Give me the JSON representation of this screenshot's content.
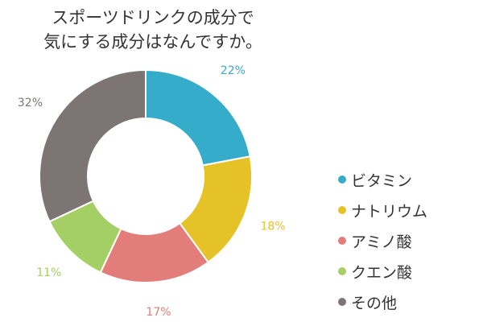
{
  "chart_data": {
    "type": "pie",
    "donut": true,
    "title_lines": [
      "スポーツドリンクの成分で",
      "気にする成分はなんですか。"
    ],
    "categories": [
      "ビタミン",
      "ナトリウム",
      "アミノ酸",
      "クエン酸",
      "その他"
    ],
    "values": [
      22,
      18,
      17,
      11,
      32
    ],
    "value_labels": [
      "22%",
      "18%",
      "17%",
      "11%",
      "32%"
    ],
    "colors": [
      "#35acc9",
      "#e6c229",
      "#e37d7a",
      "#a3cf64",
      "#7c7573"
    ],
    "legend_position": "right"
  }
}
